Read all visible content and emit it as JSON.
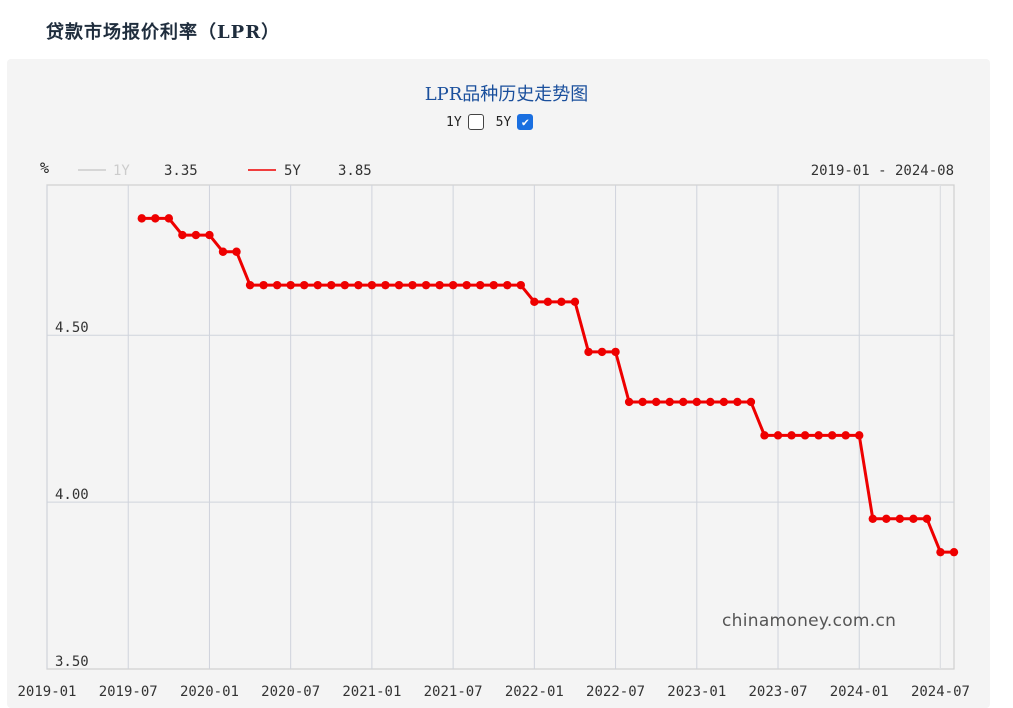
{
  "page": {
    "title": "贷款市场报价利率（LPR）"
  },
  "watermark": "chinamoney.com.cn",
  "controls": {
    "toggles": [
      {
        "label": "1Y",
        "checked": false
      },
      {
        "label": "5Y",
        "checked": true
      }
    ]
  },
  "chart_data": {
    "type": "line",
    "title": "LPR品种历史走势图",
    "ylabel": "%",
    "date_range": "2019-01 - 2024-08",
    "ylim": [
      3.5,
      4.95
    ],
    "yticks": [
      "3.50",
      "4.00",
      "4.50"
    ],
    "xlim": [
      "2019-01",
      "2024-08"
    ],
    "xticks": [
      "2019-01",
      "2019-07",
      "2020-01",
      "2020-07",
      "2021-01",
      "2021-07",
      "2022-01",
      "2022-07",
      "2023-01",
      "2023-07",
      "2024-01",
      "2024-07"
    ],
    "grid": true,
    "legend": [
      {
        "name": "1Y",
        "value": "3.35",
        "color": "#cccccc",
        "visible": false
      },
      {
        "name": "5Y",
        "value": "3.85",
        "color": "#ee0000",
        "visible": true
      }
    ],
    "series": [
      {
        "name": "5Y",
        "color": "#ee0000",
        "x": [
          "2019-08",
          "2019-09",
          "2019-10",
          "2019-11",
          "2019-12",
          "2020-01",
          "2020-02",
          "2020-03",
          "2020-04",
          "2020-05",
          "2020-06",
          "2020-07",
          "2020-08",
          "2020-09",
          "2020-10",
          "2020-11",
          "2020-12",
          "2021-01",
          "2021-02",
          "2021-03",
          "2021-04",
          "2021-05",
          "2021-06",
          "2021-07",
          "2021-08",
          "2021-09",
          "2021-10",
          "2021-11",
          "2021-12",
          "2022-01",
          "2022-02",
          "2022-03",
          "2022-04",
          "2022-05",
          "2022-06",
          "2022-07",
          "2022-08",
          "2022-09",
          "2022-10",
          "2022-11",
          "2022-12",
          "2023-01",
          "2023-02",
          "2023-03",
          "2023-04",
          "2023-05",
          "2023-06",
          "2023-07",
          "2023-08",
          "2023-09",
          "2023-10",
          "2023-11",
          "2023-12",
          "2024-01",
          "2024-02",
          "2024-03",
          "2024-04",
          "2024-05",
          "2024-06",
          "2024-07",
          "2024-08"
        ],
        "values": [
          4.85,
          4.85,
          4.85,
          4.8,
          4.8,
          4.8,
          4.75,
          4.75,
          4.65,
          4.65,
          4.65,
          4.65,
          4.65,
          4.65,
          4.65,
          4.65,
          4.65,
          4.65,
          4.65,
          4.65,
          4.65,
          4.65,
          4.65,
          4.65,
          4.65,
          4.65,
          4.65,
          4.65,
          4.65,
          4.6,
          4.6,
          4.6,
          4.6,
          4.45,
          4.45,
          4.45,
          4.3,
          4.3,
          4.3,
          4.3,
          4.3,
          4.3,
          4.3,
          4.3,
          4.3,
          4.3,
          4.2,
          4.2,
          4.2,
          4.2,
          4.2,
          4.2,
          4.2,
          4.2,
          3.95,
          3.95,
          3.95,
          3.95,
          3.95,
          3.85,
          3.85
        ]
      }
    ]
  }
}
